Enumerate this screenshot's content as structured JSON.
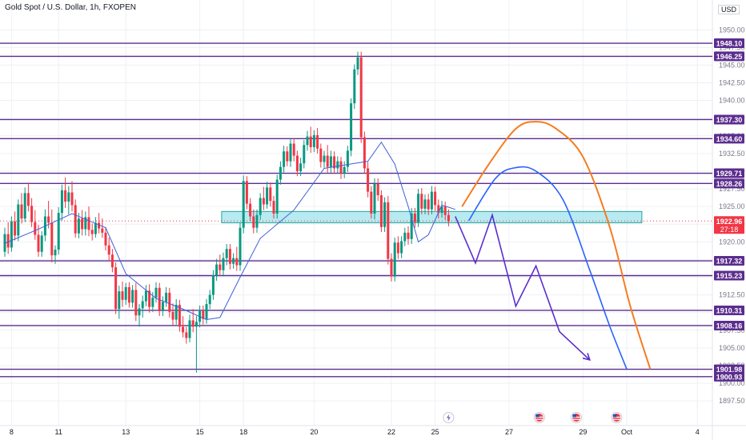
{
  "header": {
    "title": "Gold Spot / U.S. Dollar, 1h, FXOPEN",
    "currency": "USD"
  },
  "colors": {
    "up": "#089981",
    "down": "#f23645",
    "level": "#5b2d8e",
    "zone_fill": "#9fe3ec",
    "zone_stroke": "#26a69a",
    "ma": "#3f5fd6",
    "orange_path": "#f57c1f",
    "blue_path": "#2962ff",
    "zigzag": "#5b2dce",
    "grid": "#eef0f4",
    "price_tag": "#f23645"
  },
  "chart_data": {
    "type": "candlestick",
    "y_axis": {
      "min": 1896.5,
      "max": 1951.5,
      "ticks": [
        "1950.00",
        "1947.50",
        "1945.00",
        "1942.50",
        "1940.00",
        "1937.50",
        "1935.00",
        "1932.50",
        "1930.00",
        "1927.50",
        "1925.00",
        "1922.50",
        "1920.00",
        "1917.50",
        "1915.00",
        "1912.50",
        "1910.00",
        "1907.50",
        "1905.00",
        "1902.50",
        "1900.00",
        "1897.50"
      ]
    },
    "x_axis": {
      "ticks": [
        {
          "label": "8",
          "slot": 2
        },
        {
          "label": "11",
          "slot": 16
        },
        {
          "label": "13",
          "slot": 36
        },
        {
          "label": "15",
          "slot": 58
        },
        {
          "label": "18",
          "slot": 71
        },
        {
          "label": "20",
          "slot": 92
        },
        {
          "label": "22",
          "slot": 115
        },
        {
          "label": "25",
          "slot": 128
        },
        {
          "label": "27",
          "slot": 150
        },
        {
          "label": "29",
          "slot": 172
        },
        {
          "label": "Oct",
          "slot": 185
        },
        {
          "label": "4",
          "slot": 206
        }
      ]
    },
    "candles": [
      [
        1918.6,
        1922.0,
        1917.9,
        1921.1
      ],
      [
        1921.1,
        1922.8,
        1918.3,
        1919.2
      ],
      [
        1919.2,
        1923.6,
        1918.6,
        1922.9
      ],
      [
        1922.9,
        1924.3,
        1920.2,
        1920.9
      ],
      [
        1920.9,
        1926.0,
        1920.1,
        1925.3
      ],
      [
        1925.3,
        1926.9,
        1922.6,
        1923.3
      ],
      [
        1923.3,
        1927.7,
        1922.8,
        1926.9
      ],
      [
        1926.9,
        1928.4,
        1924.3,
        1925.1
      ],
      [
        1925.1,
        1926.2,
        1922.1,
        1922.8
      ],
      [
        1922.8,
        1924.5,
        1920.3,
        1921.0
      ],
      [
        1921.0,
        1922.4,
        1917.9,
        1918.6
      ],
      [
        1918.6,
        1921.5,
        1917.9,
        1920.9
      ],
      [
        1920.9,
        1924.6,
        1920.1,
        1923.6
      ],
      [
        1923.6,
        1925.8,
        1921.9,
        1922.7
      ],
      [
        1922.7,
        1924.6,
        1917.1,
        1918.1
      ],
      [
        1918.1,
        1919.5,
        1916.9,
        1918.9
      ],
      [
        1918.9,
        1924.9,
        1918.2,
        1924.1
      ],
      [
        1924.1,
        1928.1,
        1923.0,
        1927.3
      ],
      [
        1927.3,
        1929.1,
        1924.8,
        1925.7
      ],
      [
        1925.7,
        1927.9,
        1923.9,
        1927.0
      ],
      [
        1927.0,
        1928.6,
        1924.3,
        1925.2
      ],
      [
        1925.2,
        1926.0,
        1920.6,
        1921.2
      ],
      [
        1921.2,
        1924.1,
        1920.5,
        1923.3
      ],
      [
        1923.3,
        1924.5,
        1920.9,
        1921.8
      ],
      [
        1921.8,
        1924.3,
        1920.9,
        1923.5
      ],
      [
        1923.5,
        1925.0,
        1920.8,
        1921.7
      ],
      [
        1921.7,
        1922.6,
        1920.2,
        1921.1
      ],
      [
        1921.1,
        1923.5,
        1920.6,
        1922.7
      ],
      [
        1922.7,
        1924.1,
        1921.2,
        1921.9
      ],
      [
        1921.9,
        1923.3,
        1920.6,
        1921.3
      ],
      [
        1921.3,
        1922.1,
        1918.8,
        1919.5
      ],
      [
        1919.5,
        1920.6,
        1917.3,
        1918.2
      ],
      [
        1918.2,
        1919.0,
        1915.7,
        1916.4
      ],
      [
        1916.4,
        1917.1,
        1909.8,
        1910.5
      ],
      [
        1910.5,
        1913.8,
        1909.1,
        1913.0
      ],
      [
        1913.0,
        1914.4,
        1910.8,
        1911.8
      ],
      [
        1911.8,
        1914.2,
        1911.1,
        1913.6
      ],
      [
        1913.6,
        1914.3,
        1910.7,
        1911.4
      ],
      [
        1911.4,
        1913.9,
        1910.7,
        1913.2
      ],
      [
        1913.2,
        1914.2,
        1908.8,
        1909.6
      ],
      [
        1909.6,
        1911.2,
        1908.0,
        1910.6
      ],
      [
        1910.6,
        1912.4,
        1909.3,
        1911.6
      ],
      [
        1911.6,
        1913.9,
        1910.9,
        1913.1
      ],
      [
        1913.1,
        1914.0,
        1910.0,
        1910.8
      ],
      [
        1910.8,
        1912.9,
        1910.1,
        1912.1
      ],
      [
        1912.1,
        1914.3,
        1911.4,
        1913.5
      ],
      [
        1913.5,
        1914.2,
        1909.5,
        1910.2
      ],
      [
        1910.2,
        1912.3,
        1909.5,
        1911.5
      ],
      [
        1911.5,
        1913.6,
        1910.8,
        1912.8
      ],
      [
        1912.8,
        1913.5,
        1909.3,
        1910.1
      ],
      [
        1910.1,
        1911.3,
        1908.2,
        1909.0
      ],
      [
        1909.0,
        1911.9,
        1908.3,
        1911.1
      ],
      [
        1911.1,
        1911.8,
        1907.3,
        1908.0
      ],
      [
        1908.0,
        1909.5,
        1906.5,
        1907.2
      ],
      [
        1907.2,
        1908.0,
        1905.6,
        1906.4
      ],
      [
        1906.4,
        1909.7,
        1905.8,
        1908.9
      ],
      [
        1908.9,
        1910.5,
        1907.2,
        1908.0
      ],
      [
        1908.0,
        1909.5,
        1901.5,
        1908.7
      ],
      [
        1908.7,
        1911.0,
        1907.9,
        1910.2
      ],
      [
        1910.2,
        1911.0,
        1908.3,
        1909.1
      ],
      [
        1909.1,
        1911.9,
        1908.4,
        1911.2
      ],
      [
        1911.2,
        1913.2,
        1910.5,
        1912.5
      ],
      [
        1912.5,
        1916.0,
        1911.8,
        1915.3
      ],
      [
        1915.3,
        1917.6,
        1914.5,
        1916.8
      ],
      [
        1916.8,
        1918.2,
        1915.2,
        1916.0
      ],
      [
        1916.0,
        1918.5,
        1915.3,
        1917.7
      ],
      [
        1917.7,
        1919.7,
        1916.7,
        1919.0
      ],
      [
        1919.0,
        1919.7,
        1916.1,
        1916.9
      ],
      [
        1916.9,
        1918.4,
        1916.2,
        1917.7
      ],
      [
        1917.7,
        1919.3,
        1915.9,
        1916.7
      ],
      [
        1916.7,
        1922.7,
        1915.9,
        1922.0
      ],
      [
        1922.0,
        1929.4,
        1921.2,
        1928.6
      ],
      [
        1928.6,
        1929.3,
        1924.6,
        1925.4
      ],
      [
        1925.4,
        1926.2,
        1922.9,
        1923.6
      ],
      [
        1923.6,
        1924.6,
        1921.2,
        1922.0
      ],
      [
        1922.0,
        1924.6,
        1921.3,
        1923.8
      ],
      [
        1923.8,
        1926.9,
        1923.1,
        1926.2
      ],
      [
        1926.2,
        1927.8,
        1924.5,
        1925.3
      ],
      [
        1925.3,
        1928.5,
        1924.7,
        1927.7
      ],
      [
        1927.7,
        1928.4,
        1925.0,
        1925.8
      ],
      [
        1925.8,
        1926.5,
        1923.3,
        1924.0
      ],
      [
        1924.0,
        1929.5,
        1923.3,
        1928.8
      ],
      [
        1928.8,
        1931.4,
        1928.1,
        1930.6
      ],
      [
        1930.6,
        1933.6,
        1929.8,
        1932.8
      ],
      [
        1932.8,
        1933.5,
        1930.7,
        1931.4
      ],
      [
        1931.4,
        1934.7,
        1930.6,
        1933.9
      ],
      [
        1933.9,
        1934.6,
        1931.4,
        1932.2
      ],
      [
        1932.2,
        1932.9,
        1929.3,
        1930.0
      ],
      [
        1930.0,
        1931.9,
        1929.3,
        1931.1
      ],
      [
        1931.1,
        1934.4,
        1930.4,
        1933.7
      ],
      [
        1933.7,
        1935.7,
        1932.9,
        1934.9
      ],
      [
        1934.9,
        1936.3,
        1932.6,
        1933.4
      ],
      [
        1933.4,
        1935.8,
        1932.7,
        1935.1
      ],
      [
        1935.1,
        1936.1,
        1932.5,
        1933.2
      ],
      [
        1933.2,
        1933.9,
        1930.5,
        1931.3
      ],
      [
        1931.3,
        1932.9,
        1930.5,
        1932.2
      ],
      [
        1932.2,
        1933.7,
        1929.8,
        1930.6
      ],
      [
        1930.6,
        1932.9,
        1929.8,
        1932.1
      ],
      [
        1932.1,
        1932.8,
        1929.6,
        1930.4
      ],
      [
        1930.4,
        1932.1,
        1929.7,
        1931.4
      ],
      [
        1931.4,
        1932.0,
        1928.9,
        1929.7
      ],
      [
        1929.7,
        1931.4,
        1929.0,
        1930.6
      ],
      [
        1930.6,
        1933.6,
        1929.9,
        1932.9
      ],
      [
        1932.9,
        1940.3,
        1932.1,
        1939.6
      ],
      [
        1939.6,
        1945.1,
        1938.8,
        1944.4
      ],
      [
        1944.4,
        1946.9,
        1943.6,
        1946.1
      ],
      [
        1946.1,
        1946.9,
        1934.0,
        1934.8
      ],
      [
        1934.8,
        1935.6,
        1929.7,
        1930.4
      ],
      [
        1930.4,
        1931.3,
        1926.3,
        1927.1
      ],
      [
        1927.1,
        1927.9,
        1923.3,
        1924.0
      ],
      [
        1924.0,
        1929.0,
        1923.2,
        1928.2
      ],
      [
        1928.2,
        1929.0,
        1925.8,
        1926.6
      ],
      [
        1926.6,
        1927.3,
        1921.4,
        1922.1
      ],
      [
        1922.1,
        1926.3,
        1921.4,
        1925.6
      ],
      [
        1925.6,
        1926.5,
        1916.8,
        1917.6
      ],
      [
        1917.6,
        1918.4,
        1914.4,
        1915.1
      ],
      [
        1915.1,
        1920.6,
        1914.4,
        1919.9
      ],
      [
        1919.9,
        1920.8,
        1917.6,
        1918.4
      ],
      [
        1918.4,
        1920.8,
        1917.7,
        1920.1
      ],
      [
        1920.1,
        1922.0,
        1919.4,
        1921.3
      ],
      [
        1921.3,
        1922.2,
        1919.6,
        1920.4
      ],
      [
        1920.4,
        1924.8,
        1919.7,
        1924.0
      ],
      [
        1924.0,
        1924.8,
        1922.0,
        1922.8
      ],
      [
        1922.8,
        1927.5,
        1922.1,
        1926.8
      ],
      [
        1926.8,
        1927.6,
        1923.9,
        1924.7
      ],
      [
        1924.7,
        1926.7,
        1923.9,
        1926.0
      ],
      [
        1926.0,
        1926.8,
        1923.8,
        1924.6
      ],
      [
        1924.6,
        1927.9,
        1923.9,
        1927.1
      ],
      [
        1927.1,
        1927.8,
        1924.4,
        1925.2
      ],
      [
        1925.2,
        1926.0,
        1923.3,
        1924.1
      ],
      [
        1924.1,
        1925.8,
        1923.4,
        1925.0
      ],
      [
        1925.0,
        1925.7,
        1923.1,
        1923.8
      ],
      [
        1923.8,
        1924.6,
        1922.2,
        1922.9
      ]
    ],
    "moving_average": [
      [
        0,
        1919.8
      ],
      [
        10,
        1921.8
      ],
      [
        20,
        1924.0
      ],
      [
        30,
        1922.0
      ],
      [
        36,
        1915.5
      ],
      [
        45,
        1912.0
      ],
      [
        52,
        1910.7
      ],
      [
        60,
        1909.0
      ],
      [
        64,
        1909.3
      ],
      [
        70,
        1915.0
      ],
      [
        76,
        1920.5
      ],
      [
        86,
        1924.5
      ],
      [
        95,
        1930.4
      ],
      [
        104,
        1931.1
      ],
      [
        108,
        1931.4
      ],
      [
        112,
        1934.1
      ],
      [
        116,
        1931.0
      ],
      [
        120,
        1925.0
      ],
      [
        123,
        1920.0
      ],
      [
        126,
        1921.0
      ],
      [
        130,
        1925.2
      ],
      [
        134,
        1924.6
      ]
    ],
    "levels": [
      {
        "value": 1948.1,
        "label": "1948.10"
      },
      {
        "value": 1946.25,
        "label": "1946.25"
      },
      {
        "value": 1937.3,
        "label": "1937.30"
      },
      {
        "value": 1934.6,
        "label": "1934.60"
      },
      {
        "value": 1929.71,
        "label": "1929.71"
      },
      {
        "value": 1928.26,
        "label": "1928.26"
      },
      {
        "value": 1917.32,
        "label": "1917.32"
      },
      {
        "value": 1915.23,
        "label": "1915.23"
      },
      {
        "value": 1910.31,
        "label": "1910.31"
      },
      {
        "value": 1908.16,
        "label": "1908.16"
      },
      {
        "value": 1901.98,
        "label": "1901.98"
      },
      {
        "value": 1900.93,
        "label": "1900.93"
      }
    ],
    "zone": {
      "from_slot": 64.5,
      "to_slot": 189.5,
      "top": 1924.3,
      "bottom": 1922.7
    },
    "current_price": {
      "value": 1922.96,
      "label": "1922.96",
      "timer": "27:18"
    },
    "orange_path": [
      [
        136,
        1925
      ],
      [
        144,
        1931
      ],
      [
        152,
        1936
      ],
      [
        158,
        1937
      ],
      [
        164,
        1936
      ],
      [
        172,
        1932
      ],
      [
        180,
        1922
      ],
      [
        186,
        1911
      ],
      [
        192,
        1902
      ]
    ],
    "blue_path": [
      [
        138,
        1923
      ],
      [
        146,
        1929
      ],
      [
        152,
        1930.5
      ],
      [
        158,
        1930
      ],
      [
        166,
        1926
      ],
      [
        174,
        1916
      ],
      [
        180,
        1908
      ],
      [
        185,
        1902
      ]
    ],
    "zigzag": [
      [
        134,
        1923.6
      ],
      [
        140,
        1917.0
      ],
      [
        145,
        1923.8
      ],
      [
        152,
        1910.9
      ],
      [
        158,
        1916.6
      ],
      [
        165,
        1907.3
      ],
      [
        174,
        1903.3
      ]
    ],
    "event_markers": [
      {
        "slot": 132,
        "icon": "lightning-icon"
      },
      {
        "slot": 159,
        "icon": "us-flag-icon"
      },
      {
        "slot": 170,
        "icon": "us-flag-icon"
      },
      {
        "slot": 182,
        "icon": "us-flag-icon"
      }
    ]
  }
}
